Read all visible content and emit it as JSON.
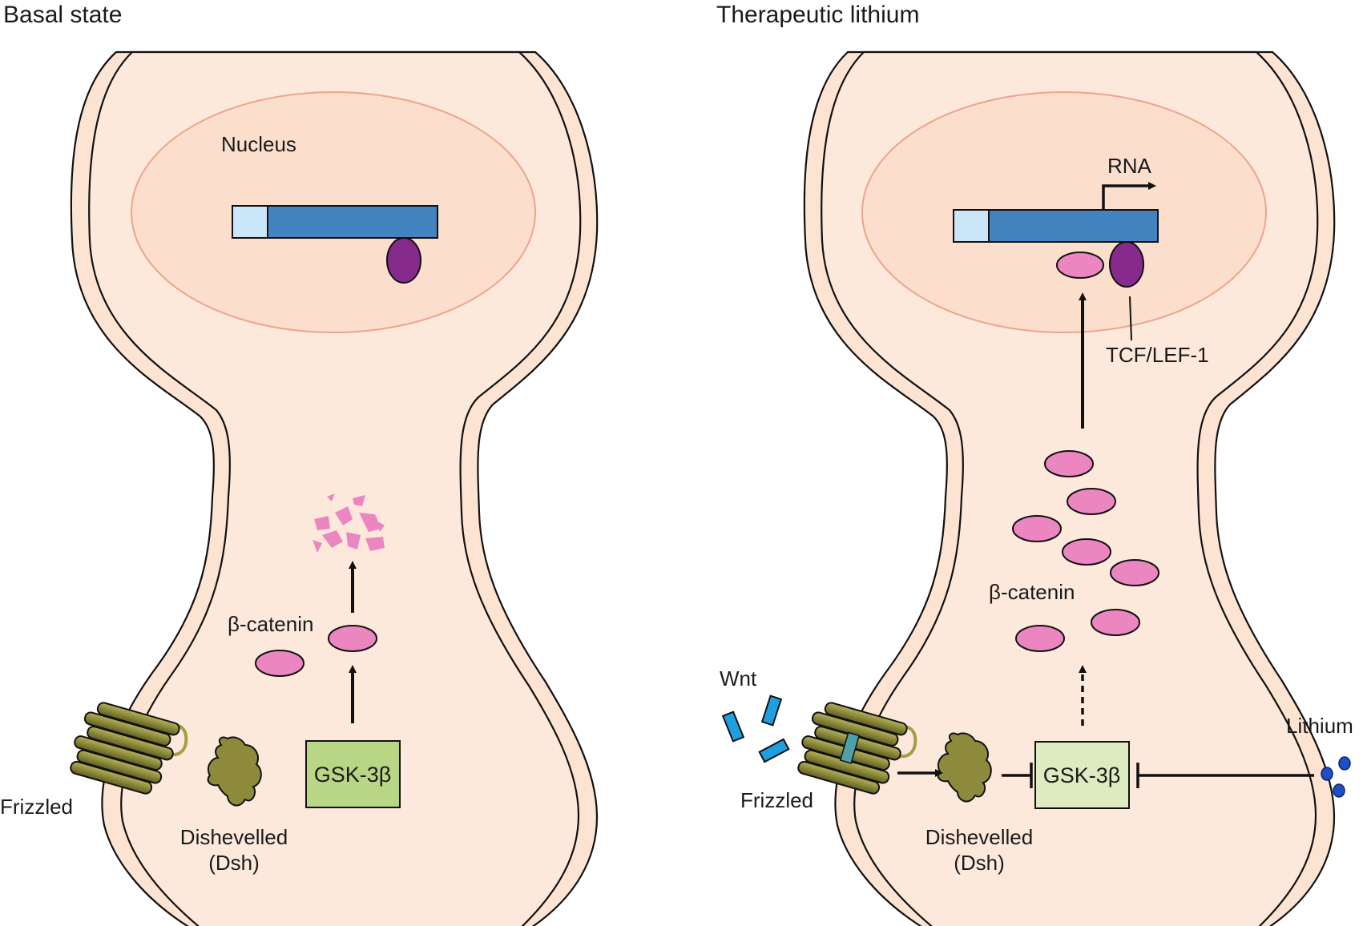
{
  "panels": {
    "left": {
      "title": "Basal state",
      "nucleus_label": "Nucleus",
      "beta_catenin_label": "β-catenin",
      "gsk_label": "GSK-3β",
      "frizzled_label": "Frizzled",
      "dishevelled_label": "Dishevelled",
      "dsh_label": "(Dsh)"
    },
    "right": {
      "title": "Therapeutic lithium",
      "rna_label": "RNA",
      "tcf_label": "TCF/LEF-1",
      "beta_catenin_label": "β-catenin",
      "gsk_label": "GSK-3β",
      "wnt_label": "Wnt",
      "frizzled_label": "Frizzled",
      "dishevelled_label": "Dishevelled",
      "dsh_label": "(Dsh)",
      "lithium_label": "Lithium"
    }
  },
  "colors": {
    "cytoplasm": "#fde9dc",
    "membrane": "#fde3d2",
    "nucleus_fill": "#fbdfcc",
    "nucleus_stroke": "#eda48b",
    "dna_blue": "#4383c0",
    "dna_light": "#cbe6f8",
    "tcf_purple": "#862b8c",
    "catenin_pink": "#ec86c0",
    "frizzled_olive": "#8c8a3a",
    "dishevelled_olive": "#8e8a3c",
    "gsk_active": "#b9d686",
    "gsk_inhibited": "#deebc0",
    "wnt_blue": "#1f9fe0",
    "lithium_blue": "#1f4fc4"
  }
}
